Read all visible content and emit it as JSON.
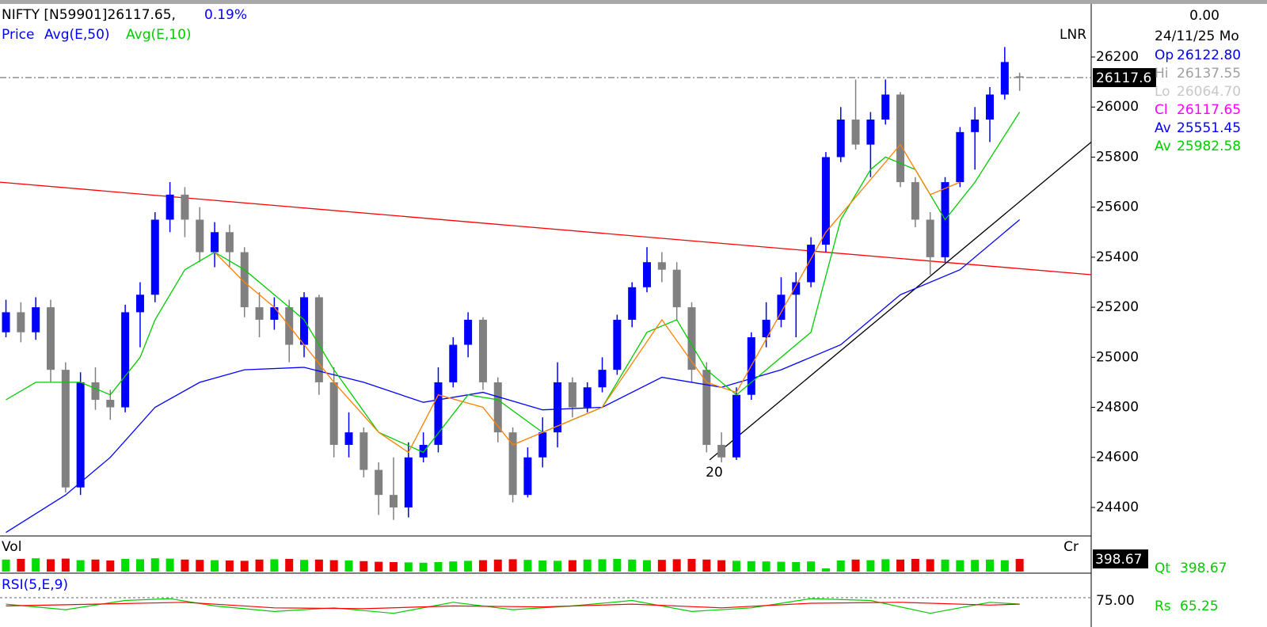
{
  "chart_data": {
    "type": "candlestick",
    "title": "NIFTY [N59901]26117.65,",
    "change": "0.19%",
    "legend": [
      "Price",
      "Avg(E,50)",
      "Avg(E,10)"
    ],
    "scale_label": "LNR",
    "annotation": "20",
    "up_color": "#0000ff",
    "down_color": "#808080",
    "xlim": [
      -0.4,
      72.8
    ],
    "ylim": [
      24286,
      26412
    ],
    "yticks": [
      24400,
      24600,
      24800,
      25000,
      25200,
      25400,
      25600,
      25800,
      26000,
      26200
    ],
    "price_line": {
      "value": 26117.65,
      "label": "26117.6"
    },
    "candles": [
      [
        25100,
        25230,
        25080,
        25180
      ],
      [
        25180,
        25220,
        25060,
        25100
      ],
      [
        25100,
        25240,
        25070,
        25200
      ],
      [
        25200,
        25230,
        24900,
        24950
      ],
      [
        24950,
        24980,
        24460,
        24480
      ],
      [
        24480,
        24940,
        24450,
        24900
      ],
      [
        24900,
        24960,
        24790,
        24830
      ],
      [
        24830,
        24870,
        24750,
        24800
      ],
      [
        24800,
        25210,
        24780,
        25180
      ],
      [
        25180,
        25300,
        25040,
        25250
      ],
      [
        25250,
        25580,
        25220,
        25550
      ],
      [
        25550,
        25700,
        25500,
        25650
      ],
      [
        25650,
        25680,
        25480,
        25550
      ],
      [
        25550,
        25600,
        25380,
        25420
      ],
      [
        25420,
        25540,
        25360,
        25500
      ],
      [
        25500,
        25530,
        25360,
        25420
      ],
      [
        25420,
        25440,
        25160,
        25200
      ],
      [
        25200,
        25260,
        25080,
        25150
      ],
      [
        25150,
        25240,
        25110,
        25200
      ],
      [
        25200,
        25230,
        24980,
        25050
      ],
      [
        25050,
        25260,
        25000,
        25240
      ],
      [
        25240,
        25250,
        24850,
        24900
      ],
      [
        24900,
        24960,
        24600,
        24650
      ],
      [
        24650,
        24780,
        24600,
        24700
      ],
      [
        24700,
        24720,
        24520,
        24550
      ],
      [
        24550,
        24580,
        24370,
        24450
      ],
      [
        24450,
        24600,
        24350,
        24400
      ],
      [
        24400,
        24660,
        24360,
        24600
      ],
      [
        24600,
        24700,
        24580,
        24650
      ],
      [
        24650,
        24960,
        24620,
        24900
      ],
      [
        24900,
        25080,
        24880,
        25050
      ],
      [
        25050,
        25180,
        25000,
        25150
      ],
      [
        25150,
        25160,
        24870,
        24900
      ],
      [
        24900,
        24920,
        24660,
        24700
      ],
      [
        24700,
        24720,
        24420,
        24450
      ],
      [
        24450,
        24640,
        24440,
        24600
      ],
      [
        24600,
        24760,
        24560,
        24700
      ],
      [
        24700,
        24980,
        24640,
        24900
      ],
      [
        24900,
        24920,
        24760,
        24800
      ],
      [
        24800,
        24900,
        24780,
        24880
      ],
      [
        24880,
        25000,
        24860,
        24950
      ],
      [
        24950,
        25170,
        24930,
        25150
      ],
      [
        25150,
        25300,
        25120,
        25280
      ],
      [
        25280,
        25440,
        25260,
        25380
      ],
      [
        25380,
        25420,
        25300,
        25350
      ],
      [
        25350,
        25380,
        25150,
        25200
      ],
      [
        25200,
        25220,
        24900,
        24950
      ],
      [
        24950,
        24980,
        24620,
        24650
      ],
      [
        24650,
        24700,
        24580,
        24600
      ],
      [
        24600,
        24880,
        24590,
        24850
      ],
      [
        24850,
        25100,
        24830,
        25080
      ],
      [
        25080,
        25220,
        25040,
        25150
      ],
      [
        25150,
        25320,
        25120,
        25250
      ],
      [
        25250,
        25340,
        25080,
        25300
      ],
      [
        25300,
        25480,
        25280,
        25450
      ],
      [
        25450,
        25820,
        25420,
        25800
      ],
      [
        25800,
        26000,
        25780,
        25950
      ],
      [
        25950,
        26110,
        25830,
        25850
      ],
      [
        25850,
        25980,
        25720,
        25950
      ],
      [
        25950,
        26110,
        25930,
        26050
      ],
      [
        26050,
        26060,
        25680,
        25700
      ],
      [
        25700,
        25720,
        25520,
        25550
      ],
      [
        25550,
        25580,
        25330,
        25400
      ],
      [
        25400,
        25720,
        25380,
        25700
      ],
      [
        25700,
        25920,
        25680,
        25900
      ],
      [
        25900,
        26000,
        25750,
        25950
      ],
      [
        25950,
        26080,
        25860,
        26050
      ],
      [
        26050,
        26240,
        26030,
        26180
      ],
      [
        26122.8,
        26137.55,
        26064.7,
        26117.65
      ]
    ],
    "series": [
      {
        "name": "Avg(E,50)",
        "color": "#0000ff",
        "x": [
          0,
          4,
          7,
          10,
          13,
          16,
          20,
          24,
          28,
          32,
          36,
          40,
          44,
          48,
          52,
          56,
          60,
          64,
          68
        ],
        "values": [
          24300,
          24450,
          24600,
          24800,
          24900,
          24950,
          24960,
          24900,
          24820,
          24860,
          24790,
          24800,
          24920,
          24880,
          24950,
          25050,
          25250,
          25350,
          25550
        ]
      },
      {
        "name": "Avg(E,10)",
        "color": "#00cc00",
        "x": [
          0,
          2,
          5,
          7,
          9,
          10,
          12,
          14,
          16,
          18,
          20,
          22,
          25,
          28,
          31,
          33,
          36,
          40,
          43,
          45,
          47,
          49,
          51,
          54,
          56,
          58,
          59,
          61,
          63,
          65,
          68
        ],
        "values": [
          24830,
          24900,
          24900,
          24850,
          25000,
          25150,
          25350,
          25420,
          25350,
          25250,
          25150,
          24950,
          24700,
          24620,
          24850,
          24830,
          24700,
          24800,
          25100,
          25150,
          24950,
          24850,
          24950,
          25100,
          25550,
          25750,
          25800,
          25750,
          25550,
          25700,
          25980
        ]
      },
      {
        "color": "#ff8000",
        "x": [
          14,
          16,
          18,
          20,
          22,
          25,
          27,
          29,
          32,
          34,
          36,
          40,
          44,
          47,
          49,
          55,
          60,
          62,
          64
        ],
        "values": [
          25420,
          25300,
          25200,
          25050,
          24900,
          24700,
          24620,
          24850,
          24800,
          24650,
          24700,
          24800,
          25150,
          24900,
          24860,
          25500,
          25850,
          25650,
          25700
        ]
      }
    ],
    "trendlines": [
      {
        "color": "#ff0000",
        "x": [
          -0.4,
          72.8
        ],
        "values": [
          25700,
          25330
        ]
      },
      {
        "color": "#000000",
        "x": [
          47.2,
          72.8
        ],
        "values": [
          24590,
          25860
        ]
      }
    ],
    "volume": {
      "label": "Vol",
      "unit_label": "Cr",
      "ylim": [
        0,
        450
      ],
      "current": {
        "value": 398.67,
        "label": "398.67"
      },
      "values": [
        380,
        400,
        420,
        390,
        410,
        360,
        380,
        350,
        400,
        390,
        420,
        410,
        380,
        370,
        360,
        350,
        340,
        380,
        390,
        400,
        370,
        380,
        360,
        350,
        330,
        310,
        300,
        290,
        280,
        300,
        320,
        340,
        360,
        380,
        390,
        370,
        350,
        340,
        360,
        380,
        390,
        400,
        380,
        360,
        370,
        390,
        400,
        380,
        360,
        340,
        330,
        320,
        310,
        300,
        320,
        100,
        350,
        380,
        360,
        390,
        380,
        400,
        390,
        380,
        360,
        370,
        380,
        360,
        398.67
      ]
    },
    "rsi": {
      "label": "RSI(5,E,9)",
      "ylim": [
        0,
        100
      ],
      "ticks": [
        {
          "value": 75,
          "label": "75.00"
        }
      ],
      "series": [
        {
          "color": "#00cc00",
          "x": [
            0,
            4,
            8,
            11,
            14,
            18,
            22,
            26,
            30,
            34,
            38,
            42,
            46,
            50,
            54,
            58,
            62,
            66,
            68
          ],
          "values": [
            68,
            62,
            72,
            74,
            66,
            60,
            64,
            58,
            70,
            62,
            66,
            72,
            60,
            64,
            74,
            72,
            58,
            70,
            68
          ]
        },
        {
          "color": "#ff0000",
          "x": [
            0,
            6,
            12,
            18,
            24,
            30,
            36,
            42,
            48,
            54,
            60,
            66,
            68
          ],
          "values": [
            66,
            68,
            70,
            64,
            63,
            66,
            65,
            68,
            64,
            69,
            70,
            67,
            68
          ]
        }
      ]
    },
    "info": {
      "top_value": "0.00",
      "date": "24/11/25 Mo",
      "rows": [
        {
          "label": "Op",
          "value": "26122.80",
          "color": "#0000ff"
        },
        {
          "label": "Hi",
          "value": "26137.55",
          "color": "#a0a0a0"
        },
        {
          "label": "Lo",
          "value": "26064.70",
          "color": "#c8c8c8"
        },
        {
          "label": "Cl",
          "value": "26117.65",
          "color": "#ff00ff"
        },
        {
          "label": "Av",
          "value": "25551.45",
          "color": "#0000ff"
        },
        {
          "label": "Av",
          "value": "25982.58",
          "color": "#00cc00"
        }
      ],
      "qt": {
        "label": "Qt",
        "value": "398.67"
      },
      "rs": {
        "label": "Rs",
        "value": "65.25"
      }
    }
  }
}
